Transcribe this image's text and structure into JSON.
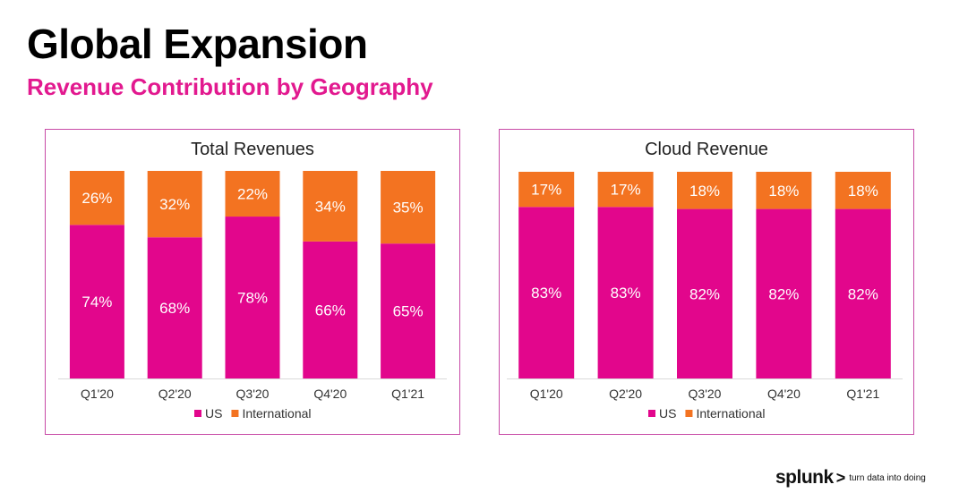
{
  "header": {
    "title": "Global Expansion",
    "subtitle": "Revenue Contribution by Geography"
  },
  "colors": {
    "us": "#e2068c",
    "international": "#f37321",
    "border": "#c84aa6"
  },
  "chart_data": [
    {
      "type": "bar",
      "stacked": true,
      "title": "Total Revenues",
      "categories": [
        "Q1'20",
        "Q2'20",
        "Q3'20",
        "Q4'20",
        "Q1'21"
      ],
      "series": [
        {
          "name": "US",
          "values": [
            74,
            68,
            78,
            66,
            65
          ],
          "labels": [
            "74%",
            "68%",
            "78%",
            "66%",
            "65%"
          ]
        },
        {
          "name": "International",
          "values": [
            26,
            32,
            22,
            34,
            35
          ],
          "labels": [
            "26%",
            "32%",
            "22%",
            "34%",
            "35%"
          ]
        }
      ],
      "ylim": [
        0,
        100
      ],
      "legend": "bottom",
      "grid": false
    },
    {
      "type": "bar",
      "stacked": true,
      "title": "Cloud Revenue",
      "categories": [
        "Q1'20",
        "Q2'20",
        "Q3'20",
        "Q4'20",
        "Q1'21"
      ],
      "series": [
        {
          "name": "US",
          "values": [
            83,
            83,
            82,
            82,
            82
          ],
          "labels": [
            "83%",
            "83%",
            "82%",
            "82%",
            "82%"
          ]
        },
        {
          "name": "International",
          "values": [
            17,
            17,
            18,
            18,
            18
          ],
          "labels": [
            "17%",
            "17%",
            "18%",
            "18%",
            "18%"
          ]
        }
      ],
      "ylim": [
        0,
        100
      ],
      "legend": "bottom",
      "grid": false
    }
  ],
  "footer": {
    "logo": "splunk",
    "logo_mark": ">",
    "tagline": "turn data into doing"
  }
}
